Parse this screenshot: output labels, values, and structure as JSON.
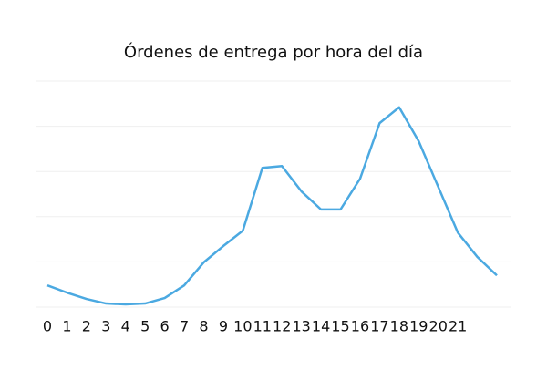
{
  "chart_data": {
    "type": "line",
    "title": "Órdenes de entrega por hora del día",
    "categories": [
      "0",
      "1",
      "2",
      "3",
      "4",
      "5",
      "6",
      "7",
      "8",
      "9",
      "10",
      "11",
      "12",
      "13",
      "14",
      "15",
      "16",
      "17",
      "18",
      "19",
      "20",
      "21",
      null,
      null
    ],
    "values": [
      0.48,
      0.32,
      0.18,
      0.08,
      0.06,
      0.08,
      0.2,
      0.48,
      0.99,
      1.35,
      1.69,
      3.08,
      3.12,
      2.56,
      2.16,
      2.16,
      2.84,
      4.07,
      4.42,
      3.67,
      2.66,
      1.65,
      1.11,
      0.7
    ],
    "color": "#4ba9e1",
    "ylim": [
      0,
      5
    ],
    "yticks": [
      0,
      1,
      2,
      3,
      4,
      5
    ],
    "grid": true
  }
}
